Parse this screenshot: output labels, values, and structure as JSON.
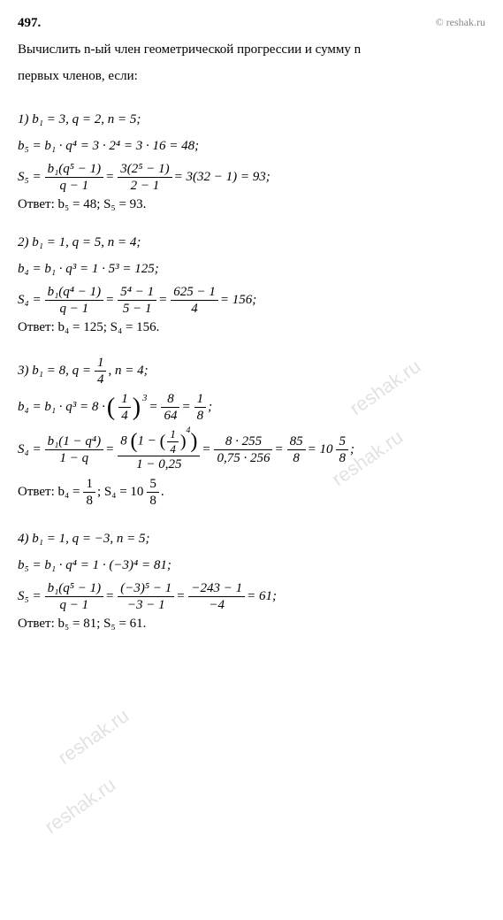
{
  "header": {
    "number": "497.",
    "copyright": "© reshak.ru"
  },
  "prompt": {
    "line1": "Вычислить n-ый член геометрической прогрессии и сумму n",
    "line2": "первых членов, если:"
  },
  "part1": {
    "given": "1) b₁ = 3,   q = 2,   n = 5;",
    "bn": "b₅ = b₁ · q⁴ = 3 · 2⁴ = 3 · 16 = 48;",
    "sn_lhs": "S₅ = ",
    "sn_frac1_num": "b₁(q⁵ − 1)",
    "sn_frac1_den": "q − 1",
    "sn_mid": " = ",
    "sn_frac2_num": "3(2⁵ − 1)",
    "sn_frac2_den": "2 − 1",
    "sn_rhs": " = 3(32 − 1) = 93;",
    "answer": "Ответ:  b₅ = 48;  S₅ = 93."
  },
  "part2": {
    "given": "2) b₁ = 1,   q = 5,   n = 4;",
    "bn": "b₄ = b₁ · q³ = 1 · 5³ = 125;",
    "sn_lhs": "S₄ = ",
    "sn_frac1_num": "b₁(q⁴ − 1)",
    "sn_frac1_den": "q − 1",
    "sn_mid1": " = ",
    "sn_frac2_num": "5⁴ − 1",
    "sn_frac2_den": "5 − 1",
    "sn_mid2": " = ",
    "sn_frac3_num": "625 − 1",
    "sn_frac3_den": "4",
    "sn_rhs": " = 156;",
    "answer": "Ответ:  b₄ = 125;  S₄ = 156."
  },
  "part3": {
    "given_pre": "3) b₁ = 8,   q = ",
    "given_q_num": "1",
    "given_q_den": "4",
    "given_post": ",   n = 4;",
    "bn_pre": "b₄ = b₁ · q³ = 8 · ",
    "bn_lp": "(",
    "bn_qnum": "1",
    "bn_qden": "4",
    "bn_rp": ")",
    "bn_exp": "3",
    "bn_mid1": " = ",
    "bn_f2num": "8",
    "bn_f2den": "64",
    "bn_mid2": " = ",
    "bn_f3num": "1",
    "bn_f3den": "8",
    "bn_post": ";",
    "sn_lhs": "S₄ = ",
    "sn_f1num": "b₁(1 − q⁴)",
    "sn_f1den": "1 − q",
    "sn_mid1": " = ",
    "sn_f2num_pre": "8 ",
    "sn_f2num_lp": "(",
    "sn_f2num_inner": "1 − ",
    "sn_f2num_lp2": "(",
    "sn_f2num_fnum": "1",
    "sn_f2num_fden": "4",
    "sn_f2num_rp2": ")",
    "sn_f2num_exp": "4",
    "sn_f2num_rp": ")",
    "sn_f2den": "1 − 0,25",
    "sn_mid2": " = ",
    "sn_f3num": "8 · 255",
    "sn_f3den": "0,75 · 256",
    "sn_mid3": " = ",
    "sn_f4num": "85",
    "sn_f4den": "8",
    "sn_mid4": " = 10",
    "sn_f5num": "5",
    "sn_f5den": "8",
    "sn_post": ";",
    "answer_pre": "Ответ:  b₄ = ",
    "answer_f1num": "1",
    "answer_f1den": "8",
    "answer_mid": ";  S₄ = 10",
    "answer_f2num": "5",
    "answer_f2den": "8",
    "answer_post": "."
  },
  "part4": {
    "given": "4) b₁ = 1,   q = −3,   n = 5;",
    "bn": "b₅ = b₁ · q⁴ = 1 · (−3)⁴ = 81;",
    "sn_lhs": "S₅ = ",
    "sn_f1num": "b₁(q⁵ − 1)",
    "sn_f1den": "q − 1",
    "sn_mid1": " = ",
    "sn_f2num": "(−3)⁵ − 1",
    "sn_f2den": "−3 − 1",
    "sn_mid2": " = ",
    "sn_f3num": "−243 − 1",
    "sn_f3den": "−4",
    "sn_rhs": " = 61;",
    "answer": "Ответ:  b₅ = 81;  S₅ = 61."
  },
  "watermark": "reshak.ru"
}
